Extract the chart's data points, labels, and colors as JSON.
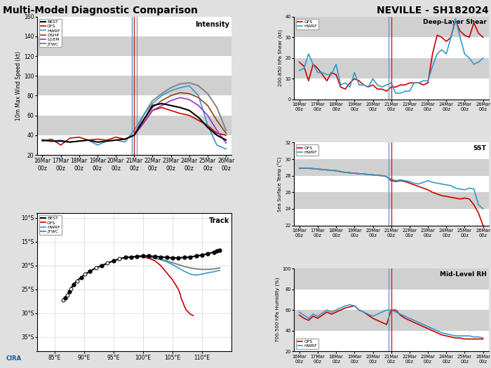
{
  "title_left": "Multi-Model Diagnostic Comparison",
  "title_right": "NEVILLE - SH182024",
  "fig_bg": "#e8e8e8",
  "plot_bg": "#ffffff",
  "stripe_light": "#ffffff",
  "stripe_dark": "#d0d0d0",
  "intensity": {
    "title": "Intensity",
    "ylabel": "10m Max Wind Speed (kt)",
    "ylim": [
      20,
      160
    ],
    "yticks": [
      20,
      40,
      60,
      80,
      100,
      120,
      140,
      160
    ],
    "xlim": [
      -0.3,
      10.3
    ],
    "vline_blue_x": 4.87,
    "vline_red_x": 5.0,
    "vline_gray_x": 5.13,
    "best_x": [
      0.0,
      0.5,
      1.0,
      1.5,
      2.0,
      2.5,
      3.0,
      3.5,
      4.0,
      4.5,
      5.0,
      5.5,
      6.0,
      6.5,
      7.0,
      7.5,
      8.0,
      8.5,
      9.0,
      9.5,
      10.0
    ],
    "best_y": [
      35,
      34,
      34,
      33,
      34,
      35,
      33,
      34,
      35,
      36,
      40,
      55,
      70,
      72,
      70,
      68,
      65,
      58,
      48,
      40,
      35
    ],
    "gfs_x": [
      0.0,
      0.5,
      1.0,
      1.5,
      2.0,
      2.5,
      3.0,
      3.5,
      4.0,
      4.5,
      5.0,
      5.5,
      6.0,
      6.5,
      7.0,
      7.5,
      8.0,
      8.5,
      9.0,
      9.5,
      10.0
    ],
    "gfs_y": [
      34,
      36,
      30,
      37,
      38,
      35,
      36,
      35,
      38,
      36,
      40,
      52,
      65,
      68,
      65,
      62,
      60,
      55,
      50,
      42,
      40
    ],
    "hwrf_x": [
      0.0,
      0.5,
      1.0,
      1.5,
      2.0,
      2.5,
      3.0,
      3.5,
      4.0,
      4.5,
      5.0,
      5.5,
      6.0,
      6.5,
      7.0,
      7.5,
      8.0,
      8.5,
      9.0,
      9.5,
      10.0
    ],
    "hwrf_y": [
      35,
      34,
      35,
      33,
      34,
      35,
      30,
      34,
      35,
      33,
      45,
      60,
      72,
      80,
      85,
      88,
      90,
      80,
      50,
      30,
      26
    ],
    "dshp_x": [
      5.0,
      5.5,
      6.0,
      6.5,
      7.0,
      7.5,
      8.0,
      8.5,
      9.0,
      9.5,
      10.0
    ],
    "dshp_y": [
      40,
      55,
      68,
      75,
      80,
      83,
      82,
      78,
      70,
      55,
      42
    ],
    "lgem_x": [
      5.0,
      5.5,
      6.0,
      6.5,
      7.0,
      7.5,
      8.0,
      8.5,
      9.0,
      9.5,
      10.0
    ],
    "lgem_y": [
      40,
      52,
      65,
      70,
      75,
      78,
      76,
      70,
      60,
      45,
      32
    ],
    "jtwc_x": [
      5.0,
      5.5,
      6.0,
      6.5,
      7.0,
      7.5,
      8.0,
      8.5,
      9.0,
      9.5,
      10.0
    ],
    "jtwc_y": [
      40,
      60,
      75,
      82,
      88,
      92,
      93,
      90,
      82,
      68,
      45
    ]
  },
  "shear": {
    "title": "Deep-Layer Shear",
    "ylabel": "200-850 hPa Shear (kt)",
    "ylim": [
      0,
      40
    ],
    "yticks": [
      0,
      10,
      20,
      30,
      40
    ],
    "xlim": [
      -0.3,
      10.3
    ],
    "vline_blue_x": 4.87,
    "vline_red_x": 5.0,
    "n": 121,
    "gfs_x": [
      0.0,
      0.25,
      0.5,
      0.75,
      1.0,
      1.25,
      1.5,
      1.75,
      2.0,
      2.25,
      2.5,
      2.75,
      3.0,
      3.25,
      3.5,
      3.75,
      4.0,
      4.25,
      4.5,
      4.75,
      5.0,
      5.25,
      5.5,
      5.75,
      6.0,
      6.25,
      6.5,
      6.75,
      7.0,
      7.25,
      7.5,
      7.75,
      8.0,
      8.25,
      8.5,
      8.75,
      9.0,
      9.25,
      9.5,
      9.75,
      10.0
    ],
    "gfs_y": [
      18,
      16,
      9,
      17,
      15,
      12,
      9,
      13,
      12,
      6,
      5,
      8,
      10,
      9,
      7,
      6,
      7,
      5,
      5,
      4,
      6,
      6,
      7,
      7,
      8,
      8,
      8,
      7,
      8,
      22,
      31,
      30,
      28,
      30,
      38,
      33,
      31,
      30,
      37,
      32,
      30
    ],
    "hwrf_x": [
      0.0,
      0.25,
      0.5,
      0.75,
      1.0,
      1.25,
      1.5,
      1.75,
      2.0,
      2.25,
      2.5,
      2.75,
      3.0,
      3.25,
      3.5,
      3.75,
      4.0,
      4.25,
      4.5,
      4.75,
      5.0,
      5.25,
      5.5,
      5.75,
      6.0,
      6.25,
      6.5,
      6.75,
      7.0,
      7.25,
      7.5,
      7.75,
      8.0,
      8.25,
      8.5,
      8.75,
      9.0,
      9.25,
      9.5,
      9.75,
      10.0
    ],
    "hwrf_y": [
      14,
      15,
      22,
      17,
      13,
      13,
      12,
      12,
      17,
      7,
      8,
      6,
      13,
      7,
      7,
      6,
      10,
      7,
      6,
      7,
      8,
      3,
      3,
      4,
      4,
      8,
      8,
      9,
      9,
      16,
      22,
      24,
      22,
      30,
      39,
      30,
      22,
      20,
      17,
      18,
      20
    ]
  },
  "sst": {
    "title": "SST",
    "ylabel": "Sea Surface Temp (°C)",
    "ylim": [
      22,
      32
    ],
    "yticks": [
      22,
      24,
      26,
      28,
      30,
      32
    ],
    "xlim": [
      -0.3,
      10.3
    ],
    "vline_blue_x": 4.87,
    "vline_red_x": 5.0,
    "gfs_x": [
      0.0,
      0.25,
      0.5,
      0.75,
      1.0,
      1.25,
      1.5,
      1.75,
      2.0,
      2.25,
      2.5,
      2.75,
      3.0,
      3.25,
      3.5,
      3.75,
      4.0,
      4.25,
      4.5,
      4.75,
      5.0,
      5.25,
      5.5,
      5.75,
      6.0,
      6.25,
      6.5,
      6.75,
      7.0,
      7.25,
      7.5,
      7.75,
      8.0,
      8.25,
      8.5,
      8.75,
      9.0,
      9.25,
      9.5,
      9.75,
      10.0
    ],
    "gfs_y": [
      28.9,
      28.9,
      28.9,
      28.85,
      28.8,
      28.75,
      28.7,
      28.65,
      28.6,
      28.5,
      28.4,
      28.35,
      28.3,
      28.25,
      28.2,
      28.15,
      28.1,
      28.05,
      28.0,
      27.9,
      27.4,
      27.3,
      27.4,
      27.3,
      27.1,
      26.9,
      26.7,
      26.5,
      26.3,
      26.0,
      25.8,
      25.6,
      25.5,
      25.4,
      25.3,
      25.2,
      25.3,
      25.2,
      24.5,
      23.5,
      22.0
    ],
    "hwrf_x": [
      0.0,
      0.25,
      0.5,
      0.75,
      1.0,
      1.25,
      1.5,
      1.75,
      2.0,
      2.25,
      2.5,
      2.75,
      3.0,
      3.25,
      3.5,
      3.75,
      4.0,
      4.25,
      4.5,
      4.75,
      5.0,
      5.25,
      5.5,
      5.75,
      6.0,
      6.25,
      6.5,
      6.75,
      7.0,
      7.25,
      7.5,
      7.75,
      8.0,
      8.25,
      8.5,
      8.75,
      9.0,
      9.25,
      9.5,
      9.75,
      10.0
    ],
    "hwrf_y": [
      28.9,
      28.9,
      28.9,
      28.85,
      28.8,
      28.75,
      28.7,
      28.65,
      28.6,
      28.5,
      28.4,
      28.35,
      28.3,
      28.25,
      28.2,
      28.15,
      28.1,
      28.05,
      28.0,
      27.9,
      27.6,
      27.4,
      27.5,
      27.4,
      27.3,
      27.1,
      27.0,
      27.2,
      27.4,
      27.2,
      27.1,
      27.0,
      26.9,
      26.8,
      26.5,
      26.4,
      26.3,
      26.5,
      26.4,
      24.5,
      24.0
    ]
  },
  "rh": {
    "title": "Mid-Level RH",
    "ylabel": "700-500 hPa Humidity (%)",
    "ylim": [
      20,
      100
    ],
    "yticks": [
      20,
      40,
      60,
      80,
      100
    ],
    "xlim": [
      -0.3,
      10.3
    ],
    "vline_blue_x": 4.87,
    "vline_red_x": 5.0,
    "gfs_x": [
      0.0,
      0.25,
      0.5,
      0.75,
      1.0,
      1.25,
      1.5,
      1.75,
      2.0,
      2.25,
      2.5,
      2.75,
      3.0,
      3.25,
      3.5,
      3.75,
      4.0,
      4.25,
      4.5,
      4.75,
      5.0,
      5.25,
      5.5,
      5.75,
      6.0,
      6.25,
      6.5,
      6.75,
      7.0,
      7.25,
      7.5,
      7.75,
      8.0,
      8.25,
      8.5,
      8.75,
      9.0,
      9.25,
      9.5,
      9.75,
      10.0
    ],
    "gfs_y": [
      55,
      52,
      50,
      54,
      52,
      55,
      58,
      56,
      58,
      60,
      62,
      63,
      64,
      60,
      58,
      55,
      52,
      50,
      48,
      46,
      60,
      60,
      55,
      52,
      50,
      48,
      46,
      44,
      42,
      40,
      38,
      36,
      35,
      34,
      33,
      33,
      32,
      32,
      32,
      32,
      32
    ],
    "hwrf_x": [
      0.0,
      0.25,
      0.5,
      0.75,
      1.0,
      1.25,
      1.5,
      1.75,
      2.0,
      2.25,
      2.5,
      2.75,
      3.0,
      3.25,
      3.5,
      3.75,
      4.0,
      4.25,
      4.5,
      4.75,
      5.0,
      5.25,
      5.5,
      5.75,
      6.0,
      6.25,
      6.5,
      6.75,
      7.0,
      7.25,
      7.5,
      7.75,
      8.0,
      8.25,
      8.5,
      8.75,
      9.0,
      9.25,
      9.5,
      9.75,
      10.0
    ],
    "hwrf_y": [
      58,
      55,
      52,
      56,
      54,
      57,
      60,
      58,
      60,
      62,
      64,
      65,
      64,
      60,
      58,
      56,
      54,
      56,
      58,
      60,
      60,
      58,
      56,
      54,
      52,
      50,
      48,
      46,
      44,
      42,
      40,
      38,
      37,
      36,
      35,
      35,
      35,
      35,
      34,
      34,
      33
    ]
  },
  "track": {
    "title": "Track",
    "xlim": [
      82,
      115
    ],
    "ylim": [
      -38,
      -9
    ],
    "yticks": [
      -10,
      -15,
      -20,
      -25,
      -30,
      -35
    ],
    "xticks": [
      85,
      90,
      95,
      100,
      105,
      110
    ],
    "best_lon": [
      86.5,
      86.8,
      87.2,
      87.5,
      87.8,
      88.2,
      88.8,
      89.5,
      90.2,
      91.0,
      92.0,
      93.0,
      94.0,
      95.0,
      96.0,
      97.0,
      98.0,
      99.0,
      100.0,
      101.0,
      102.0,
      103.0,
      104.0,
      105.0,
      106.0,
      107.0,
      108.0,
      109.0,
      110.0,
      111.0,
      112.0,
      112.5,
      113.0
    ],
    "best_lat": [
      -27.2,
      -26.8,
      -26.2,
      -25.5,
      -24.8,
      -24.0,
      -23.2,
      -22.5,
      -21.8,
      -21.2,
      -20.5,
      -20.0,
      -19.5,
      -19.0,
      -18.6,
      -18.3,
      -18.2,
      -18.1,
      -18.0,
      -18.0,
      -18.1,
      -18.2,
      -18.3,
      -18.4,
      -18.4,
      -18.3,
      -18.2,
      -18.0,
      -17.8,
      -17.5,
      -17.2,
      -17.0,
      -16.8
    ],
    "best_open": [
      true,
      false,
      true,
      false,
      true,
      false,
      true,
      false,
      true,
      false,
      true,
      false,
      true,
      false,
      true,
      false,
      false,
      false,
      false,
      false,
      false,
      false,
      false,
      false,
      false,
      false,
      false,
      false,
      false,
      false,
      false,
      false,
      false
    ],
    "gfs_lon": [
      99.0,
      100.0,
      101.0,
      102.0,
      103.0,
      104.0,
      105.0,
      105.5,
      106.0,
      106.3,
      106.5,
      106.8,
      107.0,
      107.2,
      107.3,
      107.5,
      107.7,
      107.9,
      108.0,
      108.2,
      108.4,
      108.5
    ],
    "gfs_lat": [
      -18.0,
      -18.2,
      -18.5,
      -19.0,
      -20.0,
      -21.5,
      -23.0,
      -24.0,
      -25.0,
      -26.0,
      -27.0,
      -27.8,
      -28.5,
      -29.0,
      -29.3,
      -29.5,
      -29.8,
      -30.0,
      -30.2,
      -30.3,
      -30.4,
      -30.5
    ],
    "hwrf_lon": [
      99.0,
      100.0,
      101.0,
      102.0,
      103.0,
      104.0,
      105.0,
      106.0,
      107.0,
      108.0,
      109.0,
      110.0,
      111.0,
      112.0,
      113.0
    ],
    "hwrf_lat": [
      -18.0,
      -18.1,
      -18.3,
      -18.5,
      -18.8,
      -19.2,
      -19.8,
      -20.5,
      -21.2,
      -21.8,
      -22.0,
      -21.8,
      -21.5,
      -21.3,
      -21.0
    ],
    "jtwc_lon": [
      99.0,
      100.0,
      101.0,
      102.0,
      103.0,
      104.0,
      105.0,
      106.0,
      107.0,
      108.0,
      109.0,
      110.0,
      111.0,
      112.0,
      113.0
    ],
    "jtwc_lat": [
      -18.0,
      -18.1,
      -18.3,
      -18.5,
      -18.7,
      -19.0,
      -19.4,
      -19.8,
      -20.2,
      -20.5,
      -20.7,
      -20.8,
      -20.8,
      -20.7,
      -20.5
    ]
  },
  "dates": [
    "16Mar\n00z",
    "17Mar\n00z",
    "18Mar\n00z",
    "19Mar\n00z",
    "20Mar\n00z",
    "21Mar\n00z",
    "22Mar\n00z",
    "23Mar\n00z",
    "24Mar\n00z",
    "25Mar\n00z",
    "26Mar\n00z"
  ],
  "colors": {
    "best": "#000000",
    "gfs": "#cc0000",
    "hwrf": "#3399cc",
    "dshp": "#8B4513",
    "lgem": "#9932CC",
    "jtwc": "#888888",
    "vline_blue": "#6699cc",
    "vline_red": "#cc2222"
  }
}
